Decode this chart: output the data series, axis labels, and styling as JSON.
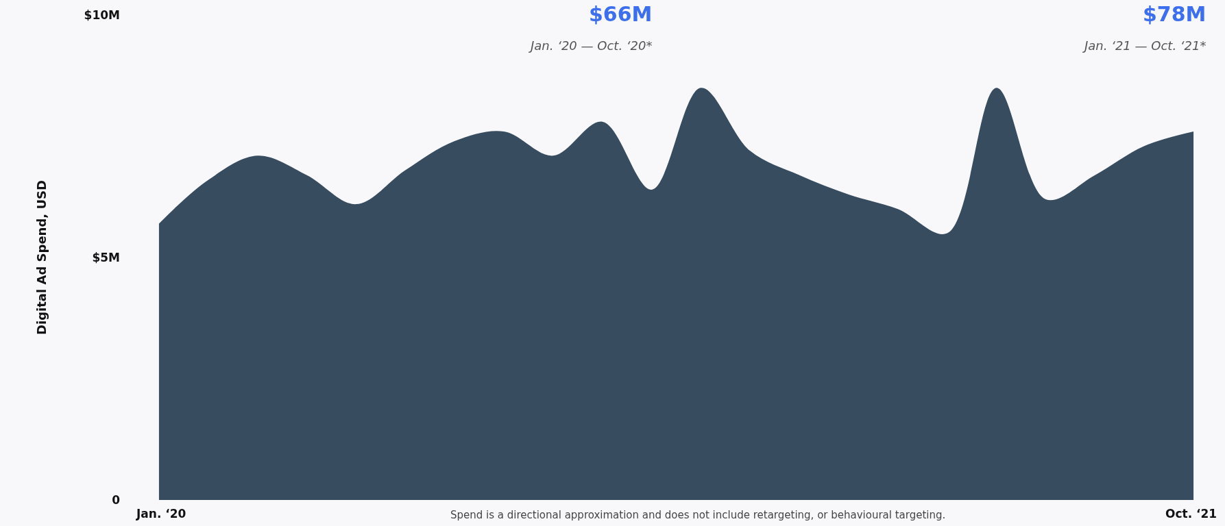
{
  "chart_data": {
    "type": "area",
    "ylabel": "Digital Ad Spend, USD",
    "categories": [
      "Jan. ‘20",
      null,
      null,
      null,
      null,
      null,
      null,
      null,
      null,
      null,
      null,
      null,
      null,
      null,
      null,
      null,
      null,
      null,
      null,
      null,
      null,
      "Oct. ‘21"
    ],
    "values": [
      5.7,
      6.6,
      7.1,
      6.7,
      6.1,
      6.8,
      7.4,
      7.6,
      7.1,
      7.8,
      6.4,
      8.5,
      7.2,
      6.7,
      6.3,
      6.0,
      5.5,
      8.5,
      6.2,
      6.7,
      7.3,
      7.6
    ],
    "color": "#374c5f",
    "ylim": [
      0,
      10
    ],
    "yticks": [
      0,
      {
        "value": 5,
        "label": "$5M"
      },
      {
        "value": 10,
        "label": "$10M"
      }
    ],
    "grid": false,
    "legend": false,
    "annotations": [
      "$66M",
      "Jan. ‘20 — Oct. ‘20*",
      "$78M",
      "Jan. ‘21 — Oct. ‘21*",
      "Spend is a directional approximation and does not include retargeting, or behavioural targeting."
    ]
  }
}
